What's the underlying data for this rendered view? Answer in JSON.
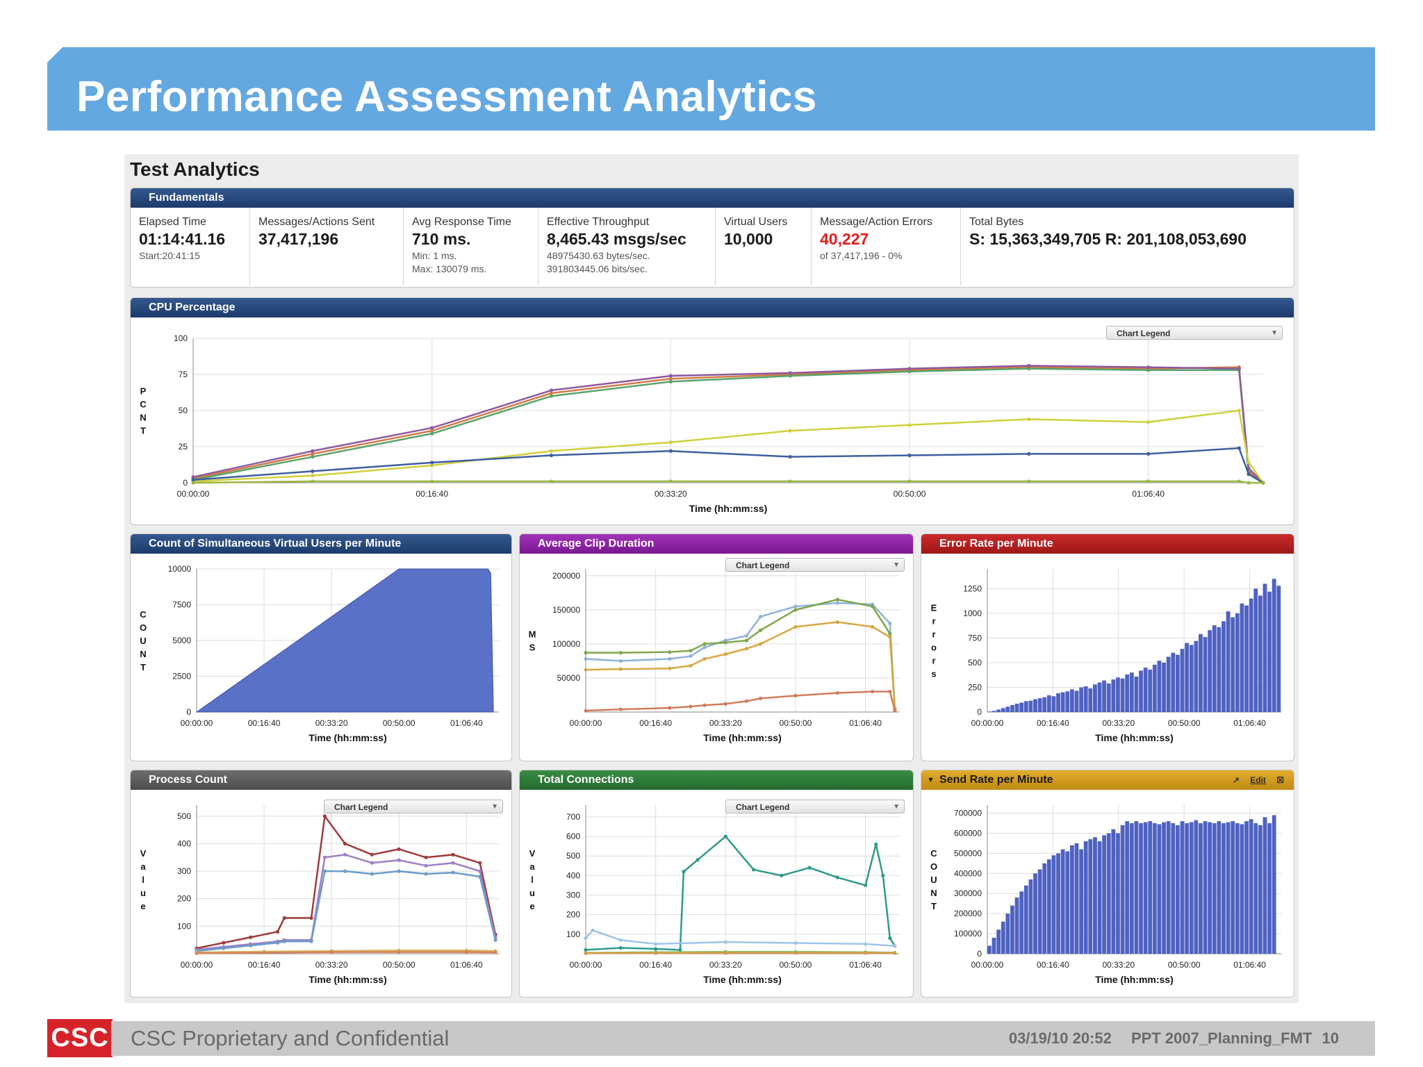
{
  "slide": {
    "title": "Performance Assessment Analytics"
  },
  "app": {
    "title": "Test Analytics"
  },
  "fundamentals": {
    "header": "Fundamentals",
    "cells": [
      {
        "label": "Elapsed Time",
        "value": "01:14:41.16",
        "sub1": "Start:20:41:15",
        "sub2": ""
      },
      {
        "label": "Messages/Actions Sent",
        "value": "37,417,196",
        "sub1": "",
        "sub2": ""
      },
      {
        "label": "Avg Response Time",
        "value": "710 ms.",
        "sub1": "Min: 1 ms.",
        "sub2": "Max: 130079 ms."
      },
      {
        "label": "Effective Throughput",
        "value": "8,465.43 msgs/sec",
        "sub1": "48975430.63 bytes/sec.",
        "sub2": "391803445.06 bits/sec."
      },
      {
        "label": "Virtual Users",
        "value": "10,000",
        "sub1": "",
        "sub2": ""
      },
      {
        "label": "Message/Action Errors",
        "value": "40,227",
        "sub1": "of 37,417,196 - 0%",
        "sub2": ""
      },
      {
        "label": "Total Bytes",
        "value": "S: 15,363,349,705  R: 201,108,053,690",
        "sub1": "",
        "sub2": ""
      }
    ]
  },
  "colors": {
    "header_blue": "#64a8e1",
    "panel_navy": "#23457a",
    "panel_purple": "#8b1fa2",
    "panel_red": "#b51f1f",
    "panel_gray": "#5c5c5c",
    "panel_green": "#2b7a36",
    "panel_orange": "#c89a1c",
    "error_red": "#e31c1c",
    "footer_red": "#d6232a"
  },
  "legend_label": "Chart Legend",
  "panel_tools": {
    "popout_icon": "popout-icon",
    "edit": "Edit",
    "close_icon": "close-icon"
  },
  "chart_data": [
    {
      "id": "cpu",
      "type": "line",
      "title": "CPU Percentage",
      "ylabel": "PCNT",
      "xlabel": "Time (hh:mm:ss)",
      "xlim": [
        0,
        4481
      ],
      "ylim": [
        0,
        100
      ],
      "x_ticks": [
        "00:00:00",
        "00:16:40",
        "00:33:20",
        "00:50:00",
        "01:06:40"
      ],
      "y_ticks": [
        "0",
        "25",
        "50",
        "75",
        "100"
      ],
      "legend": "Chart Legend",
      "series": [
        {
          "color": "#d17a45",
          "x": [
            0,
            500,
            1000,
            1500,
            2000,
            2500,
            3000,
            3500,
            4000,
            4380,
            4420,
            4481
          ],
          "values": [
            3,
            20,
            36,
            62,
            72,
            75,
            78,
            80,
            79,
            80,
            8,
            0
          ]
        },
        {
          "color": "#59a36b",
          "x": [
            0,
            500,
            1000,
            1500,
            2000,
            2500,
            3000,
            3500,
            4000,
            4380,
            4420,
            4481
          ],
          "values": [
            2,
            18,
            34,
            60,
            70,
            74,
            77,
            79,
            78,
            78,
            6,
            0
          ]
        },
        {
          "color": "#8e5a9d",
          "x": [
            0,
            500,
            1000,
            1500,
            2000,
            2500,
            3000,
            3500,
            4000,
            4380,
            4420,
            4481
          ],
          "values": [
            4,
            22,
            38,
            64,
            74,
            76,
            79,
            81,
            80,
            79,
            10,
            0
          ]
        },
        {
          "color": "#d0d03c",
          "x": [
            0,
            500,
            1000,
            1500,
            2000,
            2500,
            3000,
            3500,
            4000,
            4380,
            4420,
            4481
          ],
          "values": [
            1,
            5,
            12,
            22,
            28,
            36,
            40,
            44,
            42,
            50,
            14,
            0
          ]
        },
        {
          "color": "#3e5f9e",
          "x": [
            0,
            500,
            1000,
            1500,
            2000,
            2500,
            3000,
            3500,
            4000,
            4380,
            4420,
            4481
          ],
          "values": [
            2,
            8,
            14,
            19,
            22,
            18,
            19,
            20,
            20,
            24,
            6,
            0
          ]
        },
        {
          "color": "#9bb63f",
          "x": [
            0,
            500,
            1000,
            1500,
            2000,
            2500,
            3000,
            3500,
            4000,
            4380,
            4420,
            4481
          ],
          "values": [
            0,
            1,
            1,
            1,
            1,
            1,
            1,
            1,
            1,
            1,
            0,
            0
          ]
        }
      ]
    },
    {
      "id": "users",
      "type": "area",
      "title": "Count of Simultaneous Virtual Users per Minute",
      "ylabel": "COUNT",
      "xlabel": "Time (hh:mm:ss)",
      "xlim": [
        0,
        4481
      ],
      "ylim": [
        0,
        10000
      ],
      "x_ticks": [
        "00:00:00",
        "00:16:40",
        "00:33:20",
        "00:50:00",
        "01:06:40"
      ],
      "y_ticks": [
        "0",
        "2500",
        "5000",
        "7500",
        "10000"
      ],
      "series": [
        {
          "color": "#5a71c8",
          "x": [
            0,
            3000,
            4320,
            4360,
            4400
          ],
          "values": [
            0,
            10000,
            10000,
            9700,
            0
          ]
        }
      ]
    },
    {
      "id": "clip",
      "type": "line",
      "title": "Average Clip Duration",
      "ylabel": "MS",
      "xlabel": "Time (hh:mm:ss)",
      "xlim": [
        0,
        4481
      ],
      "ylim": [
        0,
        210000
      ],
      "x_ticks": [
        "00:00:00",
        "00:16:40",
        "00:33:20",
        "00:50:00",
        "01:06:40"
      ],
      "y_ticks": [
        "50000",
        "100000",
        "150000",
        "200000"
      ],
      "legend": "Chart Legend",
      "series": [
        {
          "color": "#8fb3d9",
          "x": [
            0,
            500,
            1200,
            1500,
            1700,
            2000,
            2300,
            2500,
            3000,
            3600,
            4100,
            4350,
            4420
          ],
          "values": [
            78000,
            75000,
            78000,
            82000,
            95000,
            105000,
            112000,
            140000,
            155000,
            160000,
            158000,
            130000,
            5000
          ]
        },
        {
          "color": "#7fa64a",
          "x": [
            0,
            500,
            1200,
            1500,
            1700,
            2000,
            2300,
            2500,
            3000,
            3600,
            4100,
            4350,
            4420
          ],
          "values": [
            87000,
            87000,
            88000,
            90000,
            100000,
            102000,
            105000,
            120000,
            150000,
            165000,
            155000,
            115000,
            5000
          ]
        },
        {
          "color": "#d7a743",
          "x": [
            0,
            500,
            1200,
            1500,
            1700,
            2000,
            2300,
            2500,
            3000,
            3600,
            4100,
            4350,
            4420
          ],
          "values": [
            62000,
            63000,
            64000,
            68000,
            78000,
            85000,
            93000,
            100000,
            125000,
            132000,
            125000,
            110000,
            5000
          ]
        },
        {
          "color": "#d07b5a",
          "x": [
            0,
            500,
            1200,
            1500,
            1700,
            2000,
            2300,
            2500,
            3000,
            3600,
            4100,
            4350,
            4420
          ],
          "values": [
            2000,
            4000,
            6000,
            8000,
            10000,
            12000,
            16000,
            20000,
            24000,
            28000,
            30000,
            30000,
            2000
          ]
        }
      ]
    },
    {
      "id": "errors",
      "type": "bar",
      "title": "Error Rate per Minute",
      "ylabel": "Errors",
      "xlabel": "Time (hh:mm:ss)",
      "xlim": [
        0,
        4481
      ],
      "ylim": [
        0,
        1450
      ],
      "x_ticks": [
        "00:00:00",
        "00:16:40",
        "00:33:20",
        "00:50:00",
        "01:06:40"
      ],
      "y_ticks": [
        "0",
        "250",
        "500",
        "750",
        "1000",
        "1250"
      ],
      "series": [
        {
          "color": "#4f62c2",
          "values": [
            5,
            12,
            25,
            40,
            55,
            70,
            85,
            95,
            110,
            115,
            130,
            140,
            150,
            170,
            160,
            190,
            200,
            210,
            230,
            215,
            250,
            260,
            240,
            280,
            300,
            320,
            290,
            330,
            350,
            340,
            380,
            400,
            360,
            420,
            450,
            430,
            480,
            520,
            500,
            560,
            600,
            580,
            640,
            700,
            680,
            720,
            790,
            760,
            830,
            880,
            860,
            920,
            1020,
            960,
            1000,
            1100,
            1080,
            1150,
            1250,
            1180,
            1300,
            1220,
            1350,
            1280
          ]
        }
      ]
    },
    {
      "id": "process",
      "type": "line",
      "title": "Process Count",
      "ylabel": "Value",
      "xlabel": "Time (hh:mm:ss)",
      "xlim": [
        0,
        4481
      ],
      "ylim": [
        0,
        540
      ],
      "x_ticks": [
        "00:00:00",
        "00:16:40",
        "00:33:20",
        "00:50:00",
        "01:06:40"
      ],
      "y_ticks": [
        "100",
        "200",
        "300",
        "400",
        "500"
      ],
      "legend": "Chart Legend",
      "series": [
        {
          "color": "#a03a3a",
          "x": [
            0,
            400,
            800,
            1200,
            1300,
            1700,
            1900,
            2200,
            2600,
            3000,
            3400,
            3800,
            4200,
            4430
          ],
          "values": [
            20,
            40,
            60,
            80,
            130,
            130,
            500,
            400,
            360,
            380,
            350,
            360,
            330,
            70
          ]
        },
        {
          "color": "#9d7fc5",
          "x": [
            0,
            400,
            800,
            1200,
            1300,
            1700,
            1900,
            2200,
            2600,
            3000,
            3400,
            3800,
            4200,
            4430
          ],
          "values": [
            15,
            25,
            35,
            45,
            50,
            50,
            350,
            360,
            330,
            340,
            320,
            330,
            300,
            60
          ]
        },
        {
          "color": "#6a9cc8",
          "x": [
            0,
            400,
            800,
            1200,
            1300,
            1700,
            1900,
            2200,
            2600,
            3000,
            3400,
            3800,
            4200,
            4430
          ],
          "values": [
            10,
            20,
            30,
            40,
            45,
            45,
            300,
            300,
            290,
            300,
            290,
            295,
            280,
            50
          ]
        },
        {
          "color": "#d2b55a",
          "x": [
            0,
            1000,
            2000,
            3000,
            4000,
            4430
          ],
          "values": [
            5,
            8,
            10,
            12,
            12,
            10
          ]
        },
        {
          "color": "#d98258",
          "x": [
            0,
            1000,
            2000,
            3000,
            4000,
            4430
          ],
          "values": [
            2,
            4,
            6,
            6,
            6,
            5
          ]
        }
      ]
    },
    {
      "id": "connections",
      "type": "line",
      "title": "Total Connections",
      "ylabel": "Value",
      "xlabel": "Time (hh:mm:ss)",
      "xlim": [
        0,
        4481
      ],
      "ylim": [
        0,
        760
      ],
      "x_ticks": [
        "00:00:00",
        "00:16:40",
        "00:33:20",
        "00:50:00",
        "01:06:40"
      ],
      "y_ticks": [
        "100",
        "200",
        "300",
        "400",
        "500",
        "600",
        "700"
      ],
      "legend": "Chart Legend",
      "series": [
        {
          "color": "#2d9a8c",
          "x": [
            0,
            500,
            1000,
            1350,
            1400,
            1600,
            2000,
            2400,
            2800,
            3200,
            3600,
            4000,
            4150,
            4250,
            4350,
            4420
          ],
          "values": [
            20,
            30,
            25,
            20,
            420,
            480,
            600,
            430,
            400,
            440,
            390,
            350,
            560,
            400,
            80,
            40
          ]
        },
        {
          "color": "#9ec5e8",
          "x": [
            0,
            100,
            500,
            1000,
            2000,
            3000,
            4000,
            4420
          ],
          "values": [
            80,
            120,
            70,
            50,
            60,
            55,
            50,
            40
          ]
        },
        {
          "color": "#8fbc60",
          "x": [
            0,
            1000,
            2000,
            3000,
            4000,
            4420
          ],
          "values": [
            5,
            8,
            10,
            10,
            8,
            6
          ]
        },
        {
          "color": "#d89a48",
          "x": [
            0,
            1000,
            2000,
            3000,
            4000,
            4420
          ],
          "values": [
            2,
            3,
            4,
            4,
            4,
            3
          ]
        }
      ]
    },
    {
      "id": "sendrate",
      "type": "bar",
      "title": "Send Rate per Minute",
      "ylabel": "COUNT",
      "xlabel": "Time (hh:mm:ss)",
      "xlim": [
        0,
        4481
      ],
      "ylim": [
        0,
        740000
      ],
      "x_ticks": [
        "00:00:00",
        "00:16:40",
        "00:33:20",
        "00:50:00",
        "01:06:40"
      ],
      "y_ticks": [
        "0",
        "100000",
        "200000",
        "300000",
        "400000",
        "500000",
        "600000",
        "700000"
      ],
      "series": [
        {
          "color": "#4f62c2",
          "values": [
            40000,
            80000,
            120000,
            160000,
            200000,
            240000,
            280000,
            310000,
            340000,
            370000,
            400000,
            420000,
            450000,
            470000,
            490000,
            500000,
            520000,
            510000,
            540000,
            550000,
            520000,
            560000,
            570000,
            580000,
            560000,
            590000,
            600000,
            620000,
            600000,
            640000,
            660000,
            650000,
            660000,
            650000,
            655000,
            660000,
            650000,
            645000,
            655000,
            660000,
            650000,
            640000,
            660000,
            650000,
            655000,
            665000,
            650000,
            660000,
            655000,
            650000,
            660000,
            650000,
            655000,
            660000,
            650000,
            645000,
            660000,
            670000,
            650000,
            640000,
            680000,
            650000,
            690000,
            0
          ]
        }
      ]
    }
  ],
  "footer": {
    "logo": "CSC",
    "confidential": "CSC Proprietary and Confidential",
    "date": "03/19/10 20:52",
    "file": "PPT 2007_Planning_FMT",
    "page": "10"
  }
}
